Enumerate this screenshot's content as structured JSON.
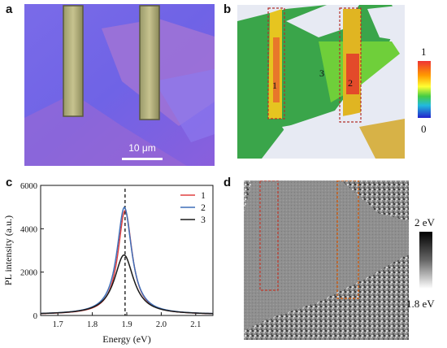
{
  "panel_labels": {
    "a": "a",
    "b": "b",
    "c": "c",
    "d": "d"
  },
  "panel_a": {
    "scale_bar_label": "10 μm"
  },
  "panel_b": {
    "region_labels": [
      "1",
      "2",
      "3"
    ],
    "colorbar_max": "1",
    "colorbar_min": "0"
  },
  "panel_d": {
    "colorbar_max": "2 eV",
    "colorbar_min": "1.8 eV"
  },
  "colors": {
    "s1": "#e04040",
    "s2": "#3f6fb8",
    "s3": "#1a1a1a",
    "box": "#b3302a"
  },
  "chart_data": {
    "type": "line",
    "title": "",
    "xlabel": "Energy (eV)",
    "ylabel": "PL intensity (a.u.)",
    "xlim": [
      1.65,
      2.15
    ],
    "ylim": [
      0,
      6000
    ],
    "xticks": [
      "1.7",
      "1.8",
      "1.9",
      "2.0",
      "2.1"
    ],
    "xtick_values": [
      1.7,
      1.8,
      1.9,
      2.0,
      2.1
    ],
    "yticks": [
      "0",
      "2000",
      "4000",
      "6000"
    ],
    "ytick_values": [
      0,
      2000,
      4000,
      6000
    ],
    "peak_marker_x": 1.895,
    "legend_position": "top-right",
    "series": [
      {
        "name": "1",
        "color": "#e04040",
        "peak": 1.895,
        "amplitude": 4800,
        "width": 0.025,
        "baseline": 40
      },
      {
        "name": "2",
        "color": "#3f6fb8",
        "peak": 1.893,
        "amplitude": 4950,
        "width": 0.026,
        "baseline": 40
      },
      {
        "name": "3",
        "color": "#1a1a1a",
        "peak": 1.892,
        "amplitude": 2750,
        "width": 0.034,
        "baseline": 40
      }
    ]
  }
}
